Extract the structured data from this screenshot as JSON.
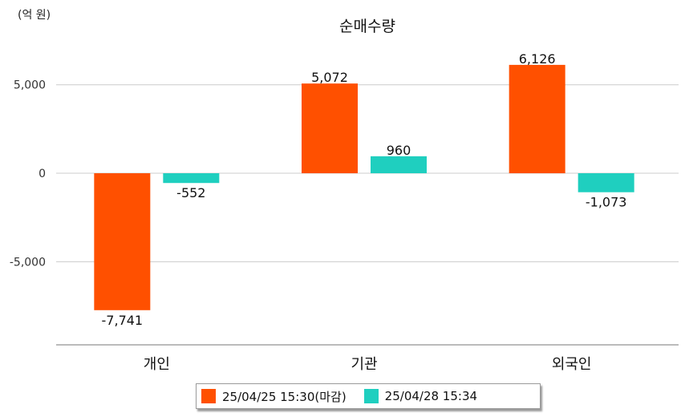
{
  "unit_label": "(억 원)",
  "chart_data": {
    "type": "bar",
    "title": "순매수량",
    "categories": [
      "개인",
      "기관",
      "외국인"
    ],
    "series": [
      {
        "name": "25/04/25 15:30(마감)",
        "color": "#ff5000",
        "values": [
          -7741,
          5072,
          6126
        ],
        "labels": [
          "-7,741",
          "5,072",
          "6,126"
        ]
      },
      {
        "name": "25/04/28 15:34",
        "color": "#1fcfbf",
        "values": [
          -552,
          960,
          -1073
        ],
        "labels": [
          "-552",
          "960",
          "-1,073"
        ]
      }
    ],
    "yticks": [
      5000,
      0,
      -5000
    ],
    "ytick_labels": [
      "5,000",
      "0",
      "-5,000"
    ],
    "ylim": [
      -9700,
      7300
    ],
    "grid": true,
    "legend_position": "bottom"
  }
}
